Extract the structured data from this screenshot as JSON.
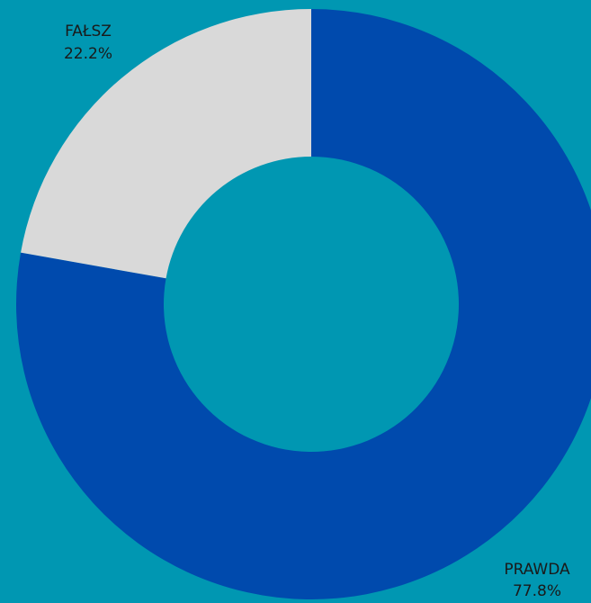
{
  "chart_data": {
    "type": "donut",
    "categories": [
      "PRAWDA",
      "FAŁSZ"
    ],
    "values": [
      77.8,
      22.2
    ],
    "value_labels": [
      "77.8%",
      "22.2%"
    ],
    "colors": [
      "#004aad",
      "#d9d9d9"
    ]
  }
}
